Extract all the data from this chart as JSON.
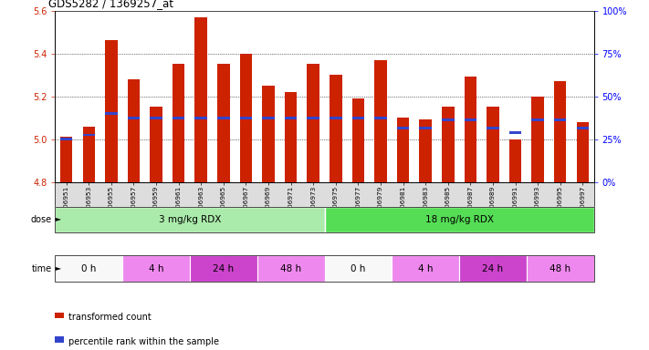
{
  "title": "GDS5282 / 1369257_at",
  "categories": [
    "GSM306951",
    "GSM306953",
    "GSM306955",
    "GSM306957",
    "GSM306959",
    "GSM306961",
    "GSM306963",
    "GSM306965",
    "GSM306967",
    "GSM306969",
    "GSM306971",
    "GSM306973",
    "GSM306975",
    "GSM306977",
    "GSM306979",
    "GSM306981",
    "GSM306983",
    "GSM306985",
    "GSM306987",
    "GSM306989",
    "GSM306991",
    "GSM306993",
    "GSM306995",
    "GSM306997"
  ],
  "bar_values": [
    5.01,
    5.06,
    5.46,
    5.28,
    5.15,
    5.35,
    5.57,
    5.35,
    5.4,
    5.25,
    5.22,
    5.35,
    5.3,
    5.19,
    5.37,
    5.1,
    5.09,
    5.15,
    5.29,
    5.15,
    5.0,
    5.2,
    5.27,
    5.08
  ],
  "percentile_values": [
    5.0,
    5.02,
    5.12,
    5.1,
    5.1,
    5.1,
    5.1,
    5.1,
    5.1,
    5.1,
    5.1,
    5.1,
    5.1,
    5.1,
    5.1,
    5.05,
    5.05,
    5.09,
    5.09,
    5.05,
    5.03,
    5.09,
    5.09,
    5.05
  ],
  "ymin": 4.8,
  "ymax": 5.6,
  "yticks_left": [
    4.8,
    5.0,
    5.2,
    5.4,
    5.6
  ],
  "yticks_right": [
    0,
    25,
    50,
    75,
    100
  ],
  "bar_color": "#cc2200",
  "blue_color": "#3344cc",
  "dose_groups": [
    {
      "label": "3 mg/kg RDX",
      "start": 0,
      "end": 12,
      "color": "#aaeaaa"
    },
    {
      "label": "18 mg/kg RDX",
      "start": 12,
      "end": 24,
      "color": "#55dd55"
    }
  ],
  "time_groups": [
    {
      "label": "0 h",
      "start": 0,
      "end": 3,
      "color": "#f8f8f8"
    },
    {
      "label": "4 h",
      "start": 3,
      "end": 6,
      "color": "#ee88ee"
    },
    {
      "label": "24 h",
      "start": 6,
      "end": 9,
      "color": "#cc44cc"
    },
    {
      "label": "48 h",
      "start": 9,
      "end": 12,
      "color": "#ee88ee"
    },
    {
      "label": "0 h",
      "start": 12,
      "end": 15,
      "color": "#f8f8f8"
    },
    {
      "label": "4 h",
      "start": 15,
      "end": 18,
      "color": "#ee88ee"
    },
    {
      "label": "24 h",
      "start": 18,
      "end": 21,
      "color": "#cc44cc"
    },
    {
      "label": "48 h",
      "start": 21,
      "end": 24,
      "color": "#ee88ee"
    }
  ],
  "legend_items": [
    {
      "label": "transformed count",
      "color": "#cc2200"
    },
    {
      "label": "percentile rank within the sample",
      "color": "#3344cc"
    }
  ],
  "fig_width": 7.11,
  "fig_height": 3.84,
  "dpi": 100
}
